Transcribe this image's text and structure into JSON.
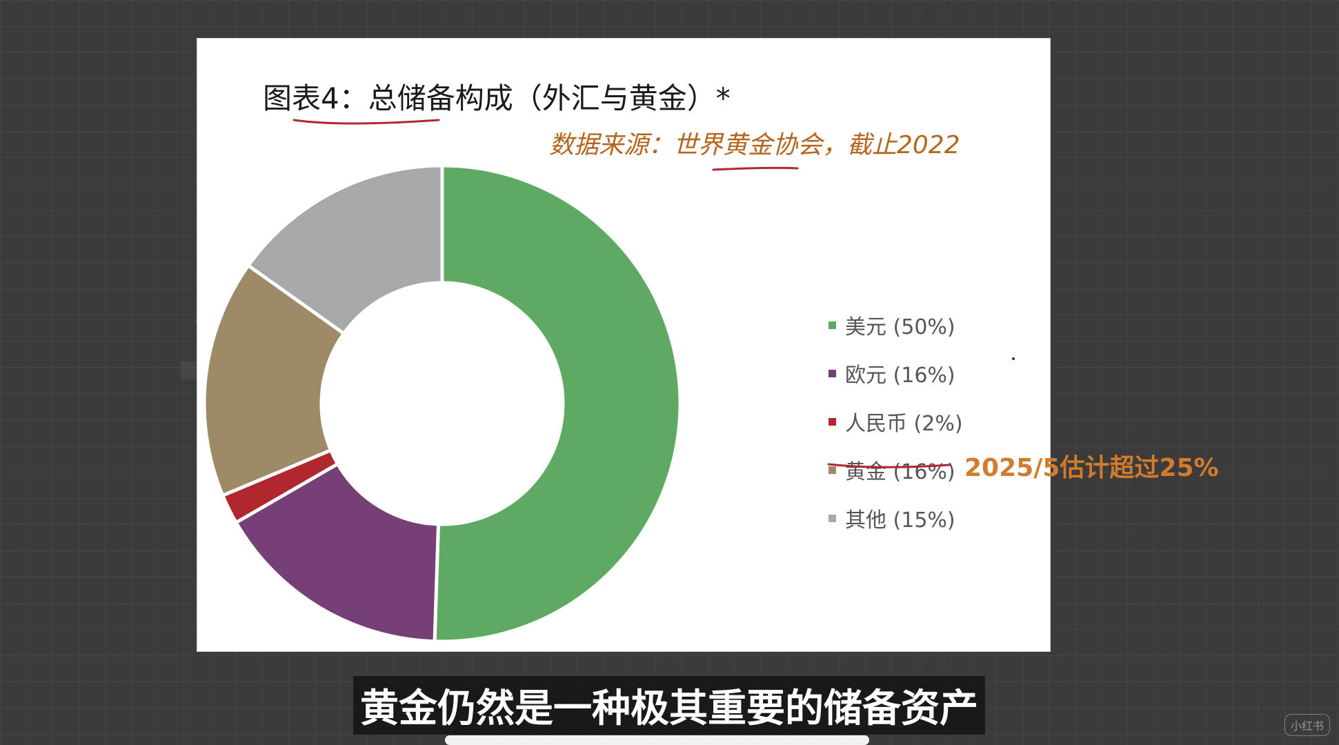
{
  "chart_data": {
    "type": "pie",
    "title": "图表4：总储备构成（外汇与黄金）*",
    "subtitle": "数据来源：世界黄金协会，截止2022",
    "categories": [
      "美元",
      "欧元",
      "人民币",
      "黄金",
      "其他"
    ],
    "values": [
      50,
      16,
      2,
      16,
      15
    ],
    "colors": [
      "#5eaa62",
      "#763f75",
      "#b0282e",
      "#9d8a66",
      "#a7a8aa"
    ],
    "legend_labels": [
      "美元 (50%)",
      "欧元 (16%)",
      "人民币 (2%)",
      "黄金 (16%)",
      "其他 (15%)"
    ],
    "legend_placement": "right",
    "donut": true,
    "annotation": "2025/5估计超过25%"
  },
  "caption": "黄金仍然是一种极其重要的储备资产",
  "corner_logo": "小红书",
  "annotation_color": "#b0282e",
  "icons": [
    "home-indicator"
  ]
}
